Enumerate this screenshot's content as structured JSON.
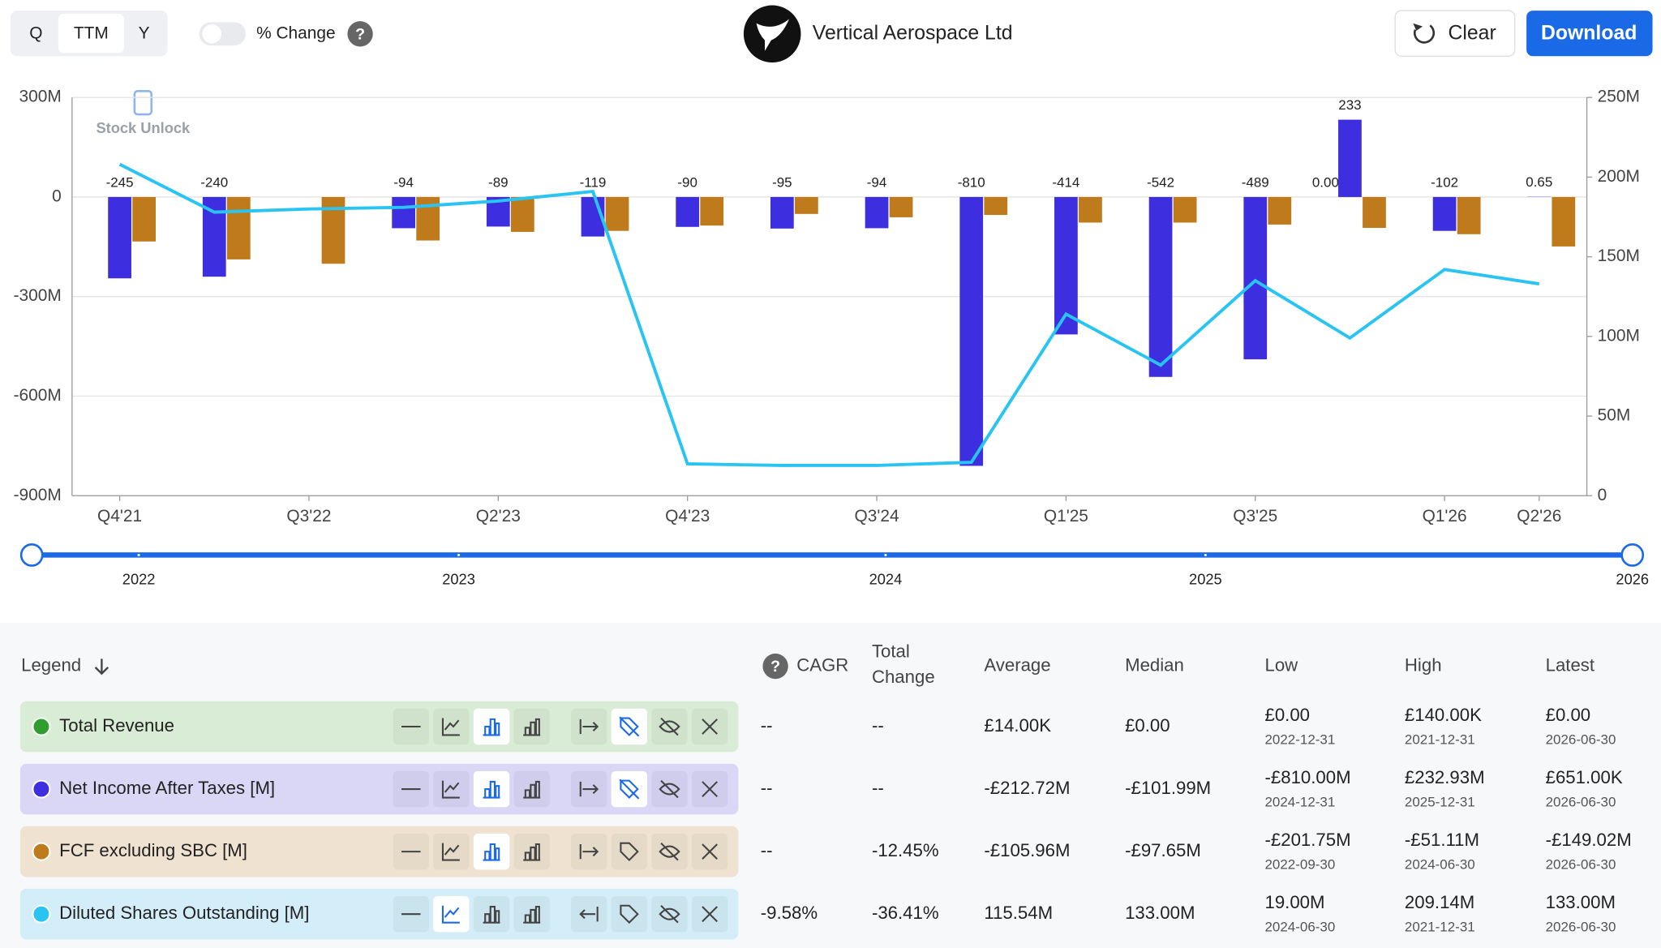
{
  "header": {
    "periods": [
      "Q",
      "TTM",
      "Y"
    ],
    "selected_period": "TTM",
    "toggle_label": "% Change",
    "company": "Vertical Aerospace Ltd",
    "clear": "Clear",
    "download": "Download",
    "watermark": "Stock Unlock"
  },
  "chart_data": {
    "type": "bar",
    "categories": [
      "Q4'21",
      null,
      "Q3'22",
      null,
      "Q2'23",
      null,
      "Q4'23",
      null,
      "Q3'24",
      null,
      "Q1'25",
      null,
      "Q3'25",
      null,
      "Q1'26",
      "Q2'26"
    ],
    "ylim": [
      -900,
      300
    ],
    "yticks": [
      {
        "value": -900,
        "label": "-900M"
      },
      {
        "value": -600,
        "label": "-600M"
      },
      {
        "value": -300,
        "label": "-300M"
      },
      0,
      {
        "value": 300,
        "label": "300M"
      }
    ],
    "y2lim": [
      0,
      250
    ],
    "y2ticks": [
      0,
      {
        "value": 50,
        "label": "50M"
      },
      {
        "value": 100,
        "label": "100M"
      },
      {
        "value": 150,
        "label": "150M"
      },
      {
        "value": 200,
        "label": "200M"
      },
      {
        "value": 250,
        "label": "250M"
      }
    ],
    "grid": true,
    "series": [
      {
        "name": "Total Revenue",
        "color": "#2e9e2e",
        "values": [
          null,
          null,
          null,
          null,
          null,
          null,
          null,
          null,
          null,
          null,
          null,
          null,
          null,
          0,
          null,
          null
        ],
        "value_labels": [
          null,
          null,
          null,
          null,
          null,
          null,
          null,
          null,
          null,
          null,
          null,
          null,
          null,
          "0.00",
          null,
          null
        ]
      },
      {
        "name": "Net Income After Taxes [M]",
        "color": "#3d2fe0",
        "values": [
          -245,
          -240,
          null,
          -94,
          -89,
          -119,
          -90,
          -95,
          -94,
          -810,
          -414,
          -542,
          -489,
          233,
          -102,
          0.65
        ]
      },
      {
        "name": "FCF excluding SBC [M]",
        "color": "#bf7a1c",
        "values": [
          -134,
          -188,
          -201,
          -131,
          -105,
          -102,
          -86,
          -51,
          -61,
          -54,
          -77,
          -77,
          -83,
          -93,
          -112,
          -149
        ]
      },
      {
        "name": "Diluted Shares Outstanding [M]",
        "color": "#29c4f2",
        "type": "line",
        "axis": "y2",
        "values": [
          208,
          178,
          180,
          181,
          185,
          191,
          20,
          19,
          19,
          21,
          114,
          82,
          135,
          99,
          142,
          133
        ]
      }
    ]
  },
  "slider": {
    "years": [
      "2022",
      "2023",
      "2024",
      "2025",
      "2026"
    ]
  },
  "table": {
    "legend_header": "Legend",
    "headers": [
      "CAGR",
      [
        "Total",
        "Change"
      ],
      "Average",
      "Median",
      "Low",
      "High",
      "Latest"
    ],
    "rows": [
      {
        "bg": "#d9ecd5",
        "cagr": "--",
        "total_change": "--",
        "average": "£14.00K",
        "median": "£0.00",
        "low": [
          "£0.00",
          "2022-12-31"
        ],
        "high": [
          "£140.00K",
          "2021-12-31"
        ],
        "latest": [
          "£0.00",
          "2026-06-30"
        ]
      },
      {
        "bg": "#d9d6f6",
        "cagr": "--",
        "total_change": "--",
        "average": "-£212.72M",
        "median": "-£101.99M",
        "low": [
          "-£810.00M",
          "2024-12-31"
        ],
        "high": [
          "£232.93M",
          "2025-12-31"
        ],
        "latest": [
          "£651.00K",
          "2026-06-30"
        ]
      },
      {
        "bg": "#efe2d0",
        "cagr": "--",
        "total_change": "-12.45%",
        "average": "-£105.96M",
        "median": "-£97.65M",
        "low": [
          "-£201.75M",
          "2022-09-30"
        ],
        "high": [
          "-£51.11M",
          "2024-06-30"
        ],
        "latest": [
          "-£149.02M",
          "2026-06-30"
        ]
      },
      {
        "bg": "#d3eef8",
        "cagr": "-9.58%",
        "total_change": "-36.41%",
        "average": "115.54M",
        "median": "133.00M",
        "low": [
          "19.00M",
          "2024-06-30"
        ],
        "high": [
          "209.14M",
          "2021-12-31"
        ],
        "latest": [
          "133.00M",
          "2026-06-30"
        ]
      }
    ]
  }
}
